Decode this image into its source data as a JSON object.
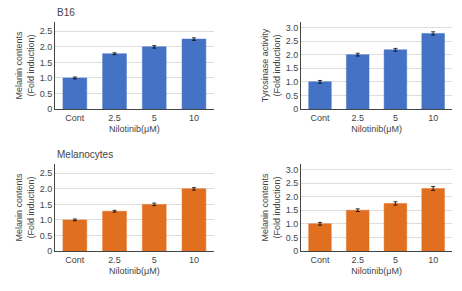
{
  "chart_data": [
    {
      "type": "bar",
      "title": "B16",
      "categories": [
        "Cont",
        "2.5",
        "5",
        "10"
      ],
      "xlabel": "Nilotinib(μM)",
      "ylabel": "Melanin contents\n(Fold induction)",
      "values": [
        1.0,
        1.78,
        2.0,
        2.25
      ],
      "errors": [
        0.03,
        0.03,
        0.04,
        0.04
      ],
      "ylim": [
        0,
        2.8
      ],
      "yticks": [
        0,
        0.5,
        {
          "value": 1.0,
          "label": "1.0"
        },
        1.5,
        {
          "value": 2.0,
          "label": "2.0"
        },
        2.5
      ],
      "color": "#4472C4",
      "grid": true
    },
    {
      "type": "bar",
      "categories": [
        "Cont",
        "2.5",
        "5",
        "10"
      ],
      "xlabel": "Nilotinib(μM)",
      "ylabel": "Tyrosinase activity\n(Fold induction)",
      "values": [
        1.0,
        2.0,
        2.18,
        2.78
      ],
      "errors": [
        0.05,
        0.05,
        0.05,
        0.06
      ],
      "ylim": [
        0,
        3.2
      ],
      "yticks": [
        0,
        0.5,
        {
          "value": 1.0,
          "label": "1.0"
        },
        1.5,
        {
          "value": 2.0,
          "label": "2.0"
        },
        2.5,
        {
          "value": 3.0,
          "label": "3.0"
        }
      ],
      "color": "#4472C4",
      "grid": true
    },
    {
      "type": "bar",
      "title": "Melanocytes",
      "categories": [
        "Cont",
        "2.5",
        "5",
        "10"
      ],
      "xlabel": "Nilotinib(μM)",
      "ylabel": "Melanin contents\n(Fold induction)",
      "values": [
        1.0,
        1.28,
        1.5,
        2.0
      ],
      "errors": [
        0.03,
        0.03,
        0.04,
        0.04
      ],
      "ylim": [
        0,
        2.8
      ],
      "yticks": [
        0,
        0.5,
        {
          "value": 1.0,
          "label": "1.0"
        },
        1.5,
        {
          "value": 2.0,
          "label": "2.0"
        },
        2.5
      ],
      "color": "#E07020",
      "grid": true
    },
    {
      "type": "bar",
      "categories": [
        "Cont",
        "2.5",
        "5",
        "10"
      ],
      "xlabel": "Nilotinib(μM)",
      "ylabel": "Melanin contents\n(Fold induction)",
      "values": [
        1.0,
        1.5,
        1.75,
        2.3
      ],
      "errors": [
        0.05,
        0.05,
        0.06,
        0.07
      ],
      "ylim": [
        0,
        3.2
      ],
      "yticks": [
        0,
        0.5,
        {
          "value": 1.0,
          "label": "1.0"
        },
        1.5,
        {
          "value": 2.0,
          "label": "2.0"
        },
        2.5,
        {
          "value": 3.0,
          "label": "3.0"
        }
      ],
      "color": "#E07020",
      "grid": true
    }
  ]
}
